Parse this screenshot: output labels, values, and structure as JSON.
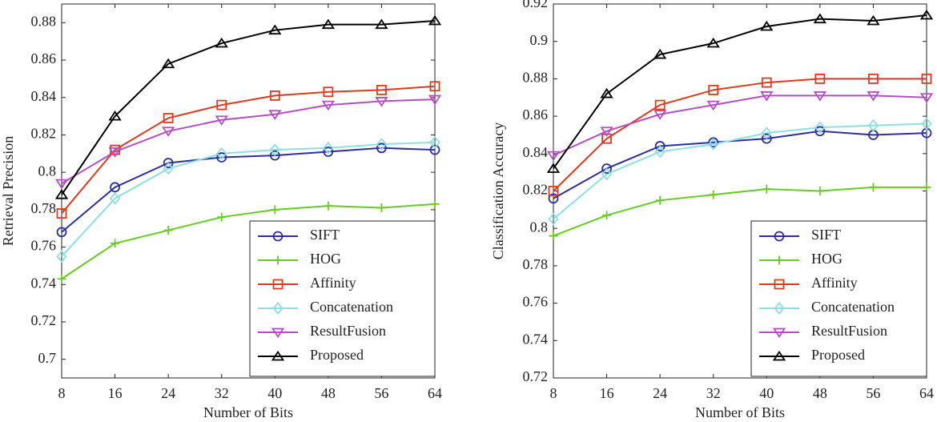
{
  "chart_data": [
    {
      "type": "line",
      "x_label": "Number of Bits",
      "y_label": "Retrieval Precision",
      "x": [
        8,
        16,
        24,
        32,
        40,
        48,
        56,
        64
      ],
      "xlim": [
        8,
        64
      ],
      "xticks": [
        8,
        16,
        24,
        32,
        40,
        48,
        56,
        64
      ],
      "ylim": [
        0.69,
        0.89
      ],
      "yticks": [
        0.7,
        0.72,
        0.74,
        0.76,
        0.78,
        0.8,
        0.82,
        0.84,
        0.86,
        0.88
      ],
      "legend": "lower right",
      "series": [
        {
          "name": "SIFT",
          "color": "#2e2e9e",
          "marker": "circle",
          "values": [
            0.768,
            0.792,
            0.805,
            0.808,
            0.809,
            0.811,
            0.813,
            0.812
          ]
        },
        {
          "name": "HOG",
          "color": "#66cc22",
          "marker": "plus",
          "values": [
            0.743,
            0.762,
            0.769,
            0.776,
            0.78,
            0.782,
            0.781,
            0.783
          ]
        },
        {
          "name": "Affinity",
          "color": "#e03a1e",
          "marker": "square",
          "values": [
            0.778,
            0.812,
            0.829,
            0.836,
            0.841,
            0.843,
            0.844,
            0.846
          ]
        },
        {
          "name": "Concatenation",
          "color": "#8ee0e0",
          "marker": "diamond",
          "values": [
            0.755,
            0.786,
            0.802,
            0.81,
            0.812,
            0.813,
            0.815,
            0.816
          ]
        },
        {
          "name": "ResultFusion",
          "color": "#b44ec4",
          "marker": "triangle-down",
          "values": [
            0.794,
            0.811,
            0.822,
            0.828,
            0.831,
            0.836,
            0.838,
            0.839
          ]
        },
        {
          "name": "Proposed",
          "color": "#000000",
          "marker": "triangle-up",
          "values": [
            0.788,
            0.83,
            0.858,
            0.869,
            0.876,
            0.879,
            0.879,
            0.881
          ]
        }
      ]
    },
    {
      "type": "line",
      "x_label": "Number of Bits",
      "y_label": "Classification Accuracy",
      "x": [
        8,
        16,
        24,
        32,
        40,
        48,
        56,
        64
      ],
      "xlim": [
        8,
        64
      ],
      "xticks": [
        8,
        16,
        24,
        32,
        40,
        48,
        56,
        64
      ],
      "ylim": [
        0.72,
        0.92
      ],
      "yticks": [
        0.72,
        0.74,
        0.76,
        0.78,
        0.8,
        0.82,
        0.84,
        0.86,
        0.88,
        0.9,
        0.92
      ],
      "legend": "lower right",
      "series": [
        {
          "name": "SIFT",
          "color": "#2e2e9e",
          "marker": "circle",
          "values": [
            0.816,
            0.832,
            0.844,
            0.846,
            0.848,
            0.852,
            0.85,
            0.851
          ]
        },
        {
          "name": "HOG",
          "color": "#66cc22",
          "marker": "plus",
          "values": [
            0.796,
            0.807,
            0.815,
            0.818,
            0.821,
            0.82,
            0.822,
            0.822
          ]
        },
        {
          "name": "Affinity",
          "color": "#e03a1e",
          "marker": "square",
          "values": [
            0.82,
            0.848,
            0.866,
            0.874,
            0.878,
            0.88,
            0.88,
            0.88
          ]
        },
        {
          "name": "Concatenation",
          "color": "#8ee0e0",
          "marker": "diamond",
          "values": [
            0.805,
            0.829,
            0.841,
            0.845,
            0.851,
            0.854,
            0.855,
            0.856
          ]
        },
        {
          "name": "ResultFusion",
          "color": "#b44ec4",
          "marker": "triangle-down",
          "values": [
            0.839,
            0.852,
            0.861,
            0.866,
            0.871,
            0.871,
            0.871,
            0.87
          ]
        },
        {
          "name": "Proposed",
          "color": "#000000",
          "marker": "triangle-up",
          "values": [
            0.832,
            0.872,
            0.893,
            0.899,
            0.908,
            0.912,
            0.911,
            0.914
          ]
        }
      ]
    }
  ]
}
